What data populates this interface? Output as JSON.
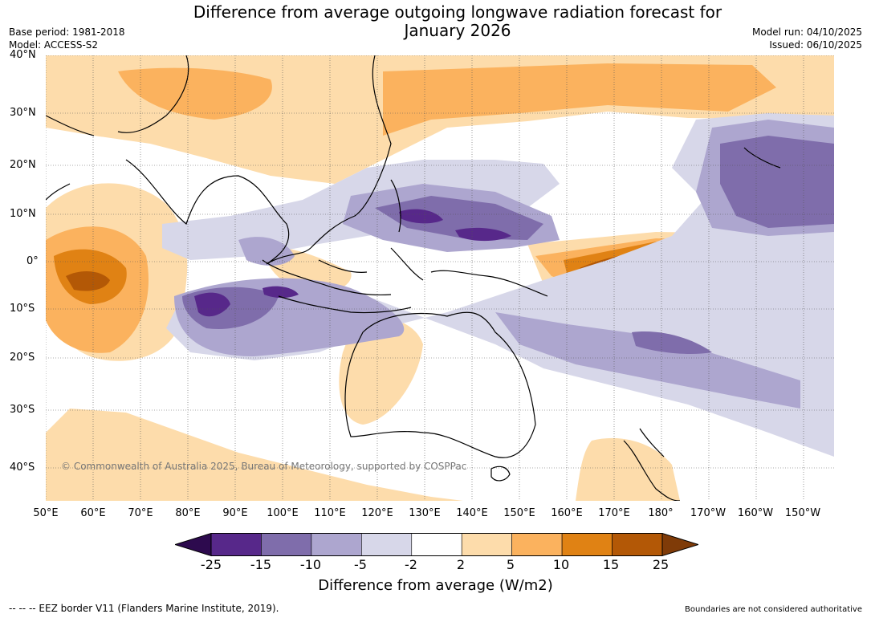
{
  "header": {
    "title_line1": "Difference from average outgoing longwave radiation forecast for",
    "title_line2": "January 2026",
    "base_period": "Base period: 1981-2018",
    "model": "Model: ACCESS-S2",
    "model_run": "Model run: 04/10/2025",
    "issued": "Issued: 06/10/2025"
  },
  "map": {
    "region": "Indo-Pacific",
    "latitude_labels": [
      "40°N",
      "30°N",
      "20°N",
      "10°N",
      "0°",
      "10°S",
      "20°S",
      "30°S",
      "40°S"
    ],
    "longitude_labels": [
      "50°E",
      "60°E",
      "70°E",
      "80°E",
      "90°E",
      "100°E",
      "110°E",
      "120°E",
      "130°E",
      "140°E",
      "150°E",
      "160°E",
      "170°E",
      "180°",
      "170°W",
      "160°W",
      "150°W"
    ],
    "copyright": "© Commonwealth of Australia 2025, Bureau of Meteorology, supported by COSPPac"
  },
  "legend": {
    "label": "Difference from average (W/m2)",
    "ticks": [
      "-25",
      "-15",
      "-10",
      "-5",
      "-2",
      "2",
      "5",
      "10",
      "15",
      "25"
    ],
    "colors": [
      "#2d0a4e",
      "#57288a",
      "#7f6dab",
      "#ada6cf",
      "#d7d7e9",
      "#ffffff",
      "#fddcab",
      "#fbb25e",
      "#e08214",
      "#b35806",
      "#7f3b08"
    ]
  },
  "footer": {
    "eez": "--  --  -- EEZ border V11 (Flanders Marine Institute, 2019).",
    "disclaimer": "Boundaries are not considered authoritative"
  }
}
